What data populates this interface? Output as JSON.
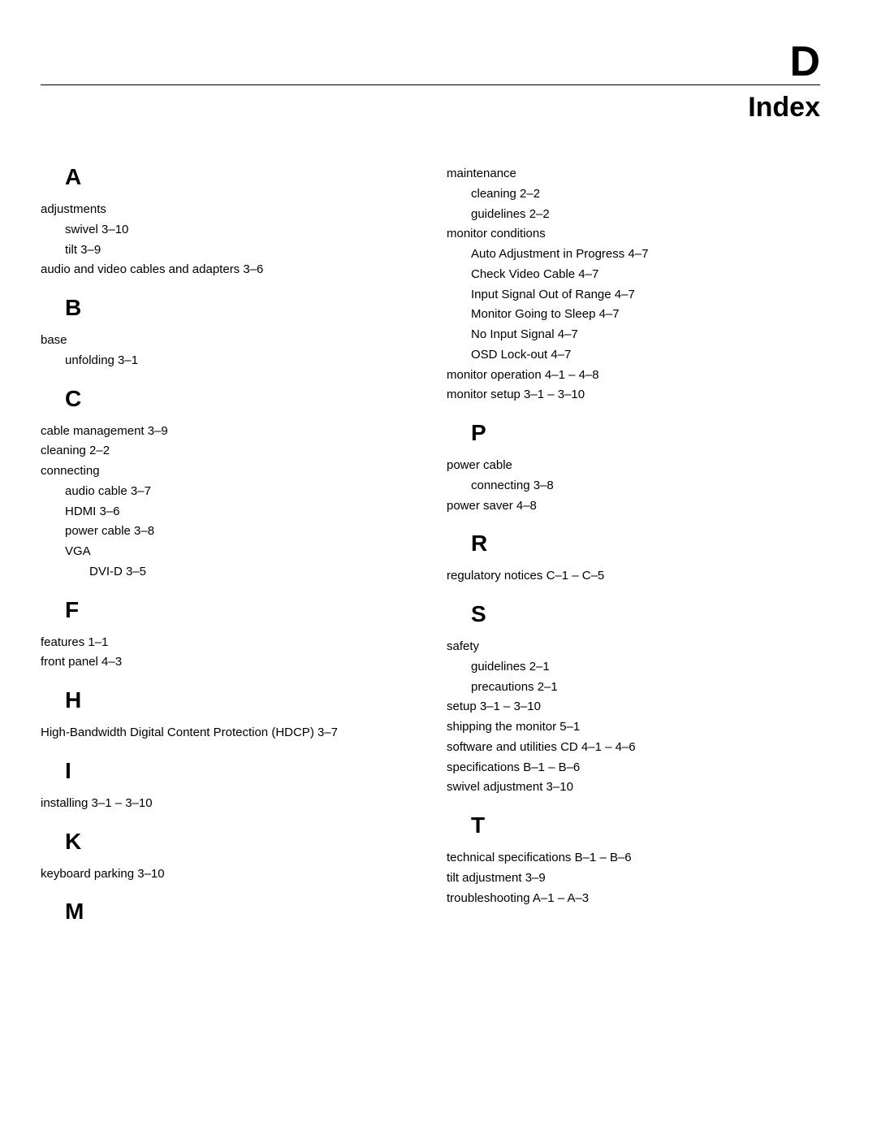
{
  "header": {
    "letter": "D",
    "title": "Index"
  },
  "left": [
    {
      "type": "heading",
      "text": "A"
    },
    {
      "type": "entry",
      "level": 0,
      "text": "adjustments"
    },
    {
      "type": "entry",
      "level": 1,
      "text": "swivel 3–10"
    },
    {
      "type": "entry",
      "level": 1,
      "text": "tilt 3–9"
    },
    {
      "type": "entry",
      "level": 0,
      "text": "audio and video cables and adapters 3–6"
    },
    {
      "type": "heading",
      "text": "B"
    },
    {
      "type": "entry",
      "level": 0,
      "text": "base"
    },
    {
      "type": "entry",
      "level": 1,
      "text": "unfolding 3–1"
    },
    {
      "type": "heading",
      "text": "C"
    },
    {
      "type": "entry",
      "level": 0,
      "text": "cable management 3–9"
    },
    {
      "type": "entry",
      "level": 0,
      "text": "cleaning 2–2"
    },
    {
      "type": "entry",
      "level": 0,
      "text": "connecting"
    },
    {
      "type": "entry",
      "level": 1,
      "text": "audio cable 3–7"
    },
    {
      "type": "entry",
      "level": 1,
      "text": "HDMI 3–6"
    },
    {
      "type": "entry",
      "level": 1,
      "text": "power cable 3–8"
    },
    {
      "type": "entry",
      "level": 1,
      "text": "VGA"
    },
    {
      "type": "entry",
      "level": 2,
      "text": "DVI-D 3–5"
    },
    {
      "type": "heading",
      "text": "F"
    },
    {
      "type": "entry",
      "level": 0,
      "text": "features 1–1"
    },
    {
      "type": "entry",
      "level": 0,
      "text": "front panel 4–3"
    },
    {
      "type": "heading",
      "text": "H"
    },
    {
      "type": "entry",
      "level": 0,
      "text": "High-Bandwidth Digital Content Protection (HDCP) 3–7"
    },
    {
      "type": "heading",
      "text": "I"
    },
    {
      "type": "entry",
      "level": 0,
      "text": "installing 3–1 – 3–10"
    },
    {
      "type": "heading",
      "text": "K"
    },
    {
      "type": "entry",
      "level": 0,
      "text": "keyboard parking 3–10"
    },
    {
      "type": "heading",
      "text": "M"
    }
  ],
  "right": [
    {
      "type": "entry",
      "level": 0,
      "text": "maintenance"
    },
    {
      "type": "entry",
      "level": 1,
      "text": "cleaning 2–2"
    },
    {
      "type": "entry",
      "level": 1,
      "text": "guidelines 2–2"
    },
    {
      "type": "entry",
      "level": 0,
      "text": "monitor conditions"
    },
    {
      "type": "entry",
      "level": 1,
      "text": "Auto Adjustment in Progress 4–7"
    },
    {
      "type": "entry",
      "level": 1,
      "text": "Check Video Cable 4–7"
    },
    {
      "type": "entry",
      "level": 1,
      "text": "Input Signal Out of Range 4–7"
    },
    {
      "type": "entry",
      "level": 1,
      "text": "Monitor Going to Sleep 4–7"
    },
    {
      "type": "entry",
      "level": 1,
      "text": "No Input Signal 4–7"
    },
    {
      "type": "entry",
      "level": 1,
      "text": "OSD Lock-out 4–7"
    },
    {
      "type": "entry",
      "level": 0,
      "text": "monitor operation 4–1 – 4–8"
    },
    {
      "type": "entry",
      "level": 0,
      "text": "monitor setup 3–1 – 3–10"
    },
    {
      "type": "heading",
      "text": "P"
    },
    {
      "type": "entry",
      "level": 0,
      "text": "power cable"
    },
    {
      "type": "entry",
      "level": 1,
      "text": "connecting 3–8"
    },
    {
      "type": "entry",
      "level": 0,
      "text": "power saver 4–8"
    },
    {
      "type": "heading",
      "text": "R"
    },
    {
      "type": "entry",
      "level": 0,
      "text": "regulatory notices C–1 – C–5"
    },
    {
      "type": "heading",
      "text": "S"
    },
    {
      "type": "entry",
      "level": 0,
      "text": "safety"
    },
    {
      "type": "entry",
      "level": 1,
      "text": "guidelines 2–1"
    },
    {
      "type": "entry",
      "level": 1,
      "text": "precautions 2–1"
    },
    {
      "type": "entry",
      "level": 0,
      "text": "setup 3–1 – 3–10"
    },
    {
      "type": "entry",
      "level": 0,
      "text": "shipping the monitor 5–1"
    },
    {
      "type": "entry",
      "level": 0,
      "text": "software and utilities CD 4–1 – 4–6"
    },
    {
      "type": "entry",
      "level": 0,
      "text": "specifications B–1 – B–6"
    },
    {
      "type": "entry",
      "level": 0,
      "text": "swivel adjustment 3–10"
    },
    {
      "type": "heading",
      "text": "T"
    },
    {
      "type": "entry",
      "level": 0,
      "text": "technical specifications B–1 – B–6"
    },
    {
      "type": "entry",
      "level": 0,
      "text": "tilt adjustment 3–9"
    },
    {
      "type": "entry",
      "level": 0,
      "text": "troubleshooting A–1 – A–3"
    }
  ]
}
